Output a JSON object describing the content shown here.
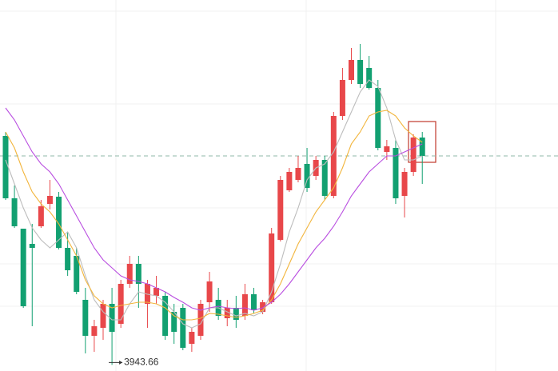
{
  "chart_data": {
    "type": "candlestick",
    "up_color": "#e8474a",
    "down_color": "#12a071",
    "ylim": [
      3936,
      4400
    ],
    "open": [
      4230,
      4152,
      4114,
      4095,
      4117,
      4145,
      4154,
      4090,
      4080,
      4025,
      3980,
      3990,
      4020,
      3995,
      4045,
      4070,
      4020,
      4030,
      4030,
      4010,
      4015,
      3970,
      3980,
      4022,
      4025,
      4002,
      4015,
      4005,
      4032,
      4010,
      4022,
      4100,
      4162,
      4175,
      4195,
      4180,
      4200,
      4155,
      4255,
      4300,
      4325,
      4315,
      4290,
      4210,
      4215,
      4155,
      4185,
      4228
    ],
    "high": [
      4235,
      4168,
      4114,
      4120,
      4150,
      4175,
      4160,
      4110,
      4090,
      4040,
      4000,
      4025,
      4040,
      4050,
      4080,
      4080,
      4050,
      4055,
      4035,
      4020,
      4020,
      3990,
      4025,
      4060,
      4040,
      4025,
      4030,
      4045,
      4040,
      4025,
      4115,
      4180,
      4190,
      4205,
      4215,
      4205,
      4205,
      4260,
      4315,
      4340,
      4345,
      4330,
      4300,
      4225,
      4225,
      4190,
      4232,
      4235
    ],
    "low": [
      4150,
      4115,
      4015,
      3992,
      4115,
      4138,
      4088,
      4055,
      4032,
      3958,
      3960,
      3975,
      3943.66,
      3990,
      4040,
      4015,
      3990,
      4020,
      3975,
      3970,
      3962,
      3960,
      3975,
      4010,
      4000,
      3992,
      3990,
      4000,
      4008,
      4007,
      4020,
      4098,
      4160,
      4172,
      4160,
      4175,
      4150,
      4152,
      4250,
      4295,
      4290,
      4288,
      4212,
      4200,
      4145,
      4128,
      4180,
      4170
    ],
    "close": [
      4152,
      4117,
      4017,
      4090,
      4142,
      4155,
      4090,
      4062,
      4035,
      3980,
      3992,
      4020,
      3985,
      4045,
      4070,
      4045,
      4045,
      4040,
      3980,
      3985,
      3965,
      3985,
      4020,
      4048,
      4005,
      4015,
      4000,
      4032,
      4012,
      4022,
      4108,
      4175,
      4185,
      4190,
      4165,
      4200,
      4155,
      4255,
      4300,
      4325,
      4295,
      4290,
      4215,
      4217,
      4152,
      4185,
      4228,
      4205
    ],
    "ma_lines": [
      {
        "color": "#bdbdbd",
        "values": [
          4200,
          4170,
          4140,
          4115,
          4100,
          4090,
          4100,
          4110,
          4090,
          4055,
          4025,
          4010,
          4000,
          4000,
          4020,
          4035,
          4032,
          4030,
          4022,
          4010,
          3995,
          3990,
          3995,
          4015,
          4015,
          4010,
          4005,
          4008,
          4005,
          4010,
          4035,
          4070,
          4110,
          4140,
          4175,
          4190,
          4195,
          4210,
          4235,
          4260,
          4285,
          4300,
          4292,
          4265,
          4225,
          4200,
          4200,
          4205
        ]
      },
      {
        "color": "#f2b53c",
        "values": [
          4235,
          4215,
          4185,
          4160,
          4145,
          4135,
          4120,
          4100,
          4080,
          4050,
          4030,
          4020,
          4015,
          4018,
          4020,
          4022,
          4022,
          4020,
          4015,
          4005,
          4000,
          4000,
          4002,
          4008,
          4007,
          4005,
          4003,
          4005,
          4008,
          4012,
          4025,
          4045,
          4070,
          4095,
          4115,
          4135,
          4150,
          4165,
          4190,
          4220,
          4235,
          4255,
          4260,
          4262,
          4255,
          4240,
          4230,
          4222
        ]
      },
      {
        "color": "#b94ee0",
        "values": [
          4265,
          4250,
          4230,
          4210,
          4195,
          4185,
          4170,
          4150,
          4130,
          4110,
          4090,
          4075,
          4065,
          4055,
          4050,
          4048,
          4045,
          4040,
          4035,
          4028,
          4022,
          4015,
          4012,
          4015,
          4017,
          4015,
          4014,
          4015,
          4012,
          4015,
          4022,
          4032,
          4045,
          4060,
          4075,
          4090,
          4102,
          4117,
          4135,
          4155,
          4170,
          4185,
          4195,
          4205,
          4205,
          4210,
          4215,
          4220
        ]
      }
    ]
  }
}
